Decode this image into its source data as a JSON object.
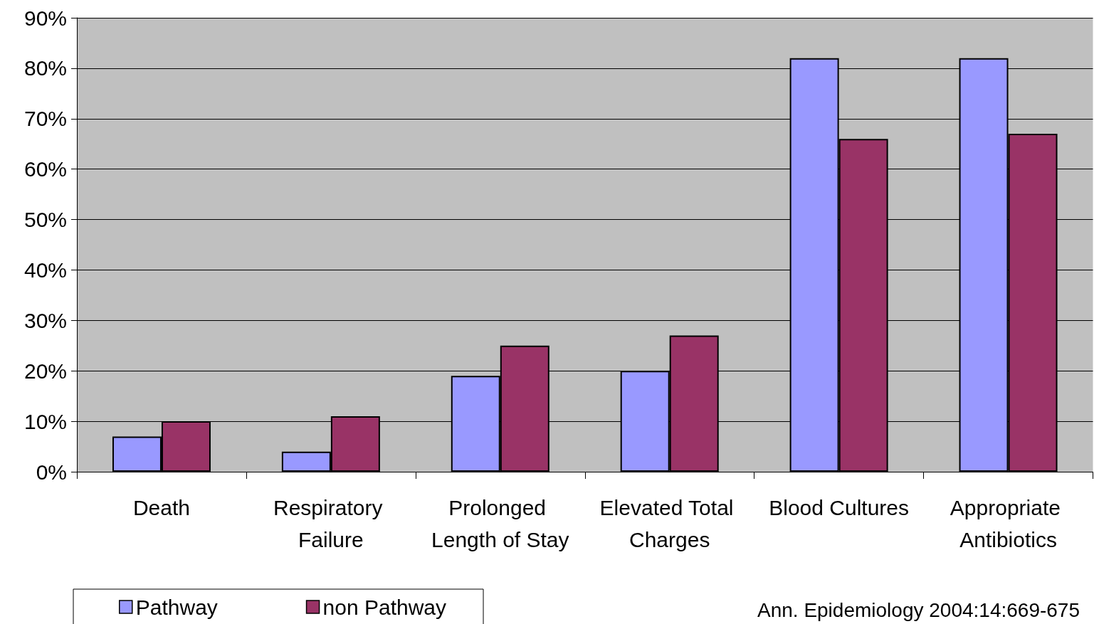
{
  "chart_data": {
    "type": "bar",
    "categories": [
      "Death",
      "Respiratory Failure",
      "Prolonged Length of Stay",
      "Elevated Total Charges",
      "Blood Cultures",
      "Appropriate Antibiotics"
    ],
    "series": [
      {
        "name": "Pathway",
        "color": "#9999ff",
        "values": [
          7,
          4,
          19,
          20,
          82,
          82
        ]
      },
      {
        "name": "non Pathway",
        "color": "#993366",
        "values": [
          10,
          11,
          25,
          27,
          66,
          67
        ]
      }
    ],
    "ylim": [
      0,
      90
    ],
    "yticks": [
      {
        "value": 0,
        "label": "0%"
      },
      {
        "value": 10,
        "label": "10%"
      },
      {
        "value": 20,
        "label": "20%"
      },
      {
        "value": 30,
        "label": "30%"
      },
      {
        "value": 40,
        "label": "40%"
      },
      {
        "value": 50,
        "label": "50%"
      },
      {
        "value": 60,
        "label": "60%"
      },
      {
        "value": 70,
        "label": "70%"
      },
      {
        "value": 80,
        "label": "80%"
      },
      {
        "value": 90,
        "label": "90%"
      }
    ],
    "grid": "y",
    "legend": "bottom left",
    "annotations": [
      "Ann. Epidemiology 2004:14:669-675"
    ]
  }
}
